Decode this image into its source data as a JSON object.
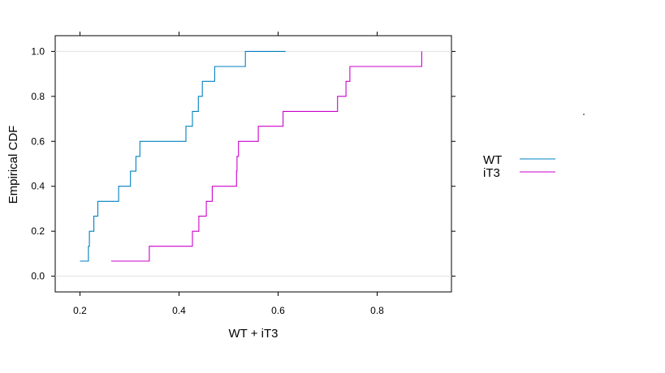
{
  "chart_data": {
    "type": "line",
    "subtype": "step-ecdf",
    "xlabel": "WT + iT3",
    "ylabel": "Empirical CDF",
    "xlim": [
      0.15,
      0.95
    ],
    "ylim": [
      -0.07,
      1.07
    ],
    "xticks": [
      "0.2",
      "0.4",
      "0.6",
      "0.8"
    ],
    "yticks": [
      "0.0",
      "0.2",
      "0.4",
      "0.6",
      "0.8",
      "1.0"
    ],
    "reference_lines": [
      0,
      1
    ],
    "grid": false,
    "legend_position": "right",
    "series": [
      {
        "name": "WT",
        "color": "#0080c0",
        "x": [
          0.2,
          0.217,
          0.219,
          0.228,
          0.236,
          0.278,
          0.302,
          0.313,
          0.321,
          0.414,
          0.427,
          0.439,
          0.447,
          0.472,
          0.534,
          0.615
        ],
        "y": [
          0.067,
          0.133,
          0.2,
          0.267,
          0.333,
          0.4,
          0.467,
          0.533,
          0.6,
          0.667,
          0.733,
          0.8,
          0.867,
          0.933,
          1.0,
          1.0
        ]
      },
      {
        "name": "iT3",
        "color": "#cc00cc",
        "x": [
          0.263,
          0.34,
          0.427,
          0.44,
          0.455,
          0.467,
          0.47,
          0.516,
          0.517,
          0.518,
          0.52,
          0.56,
          0.61,
          0.72,
          0.737,
          0.745,
          0.89
        ],
        "y": [
          0.067,
          0.133,
          0.2,
          0.267,
          0.333,
          0.4,
          0.4,
          0.467,
          0.533,
          0.533,
          0.6,
          0.667,
          0.733,
          0.8,
          0.867,
          0.933,
          1.0
        ]
      }
    ]
  }
}
